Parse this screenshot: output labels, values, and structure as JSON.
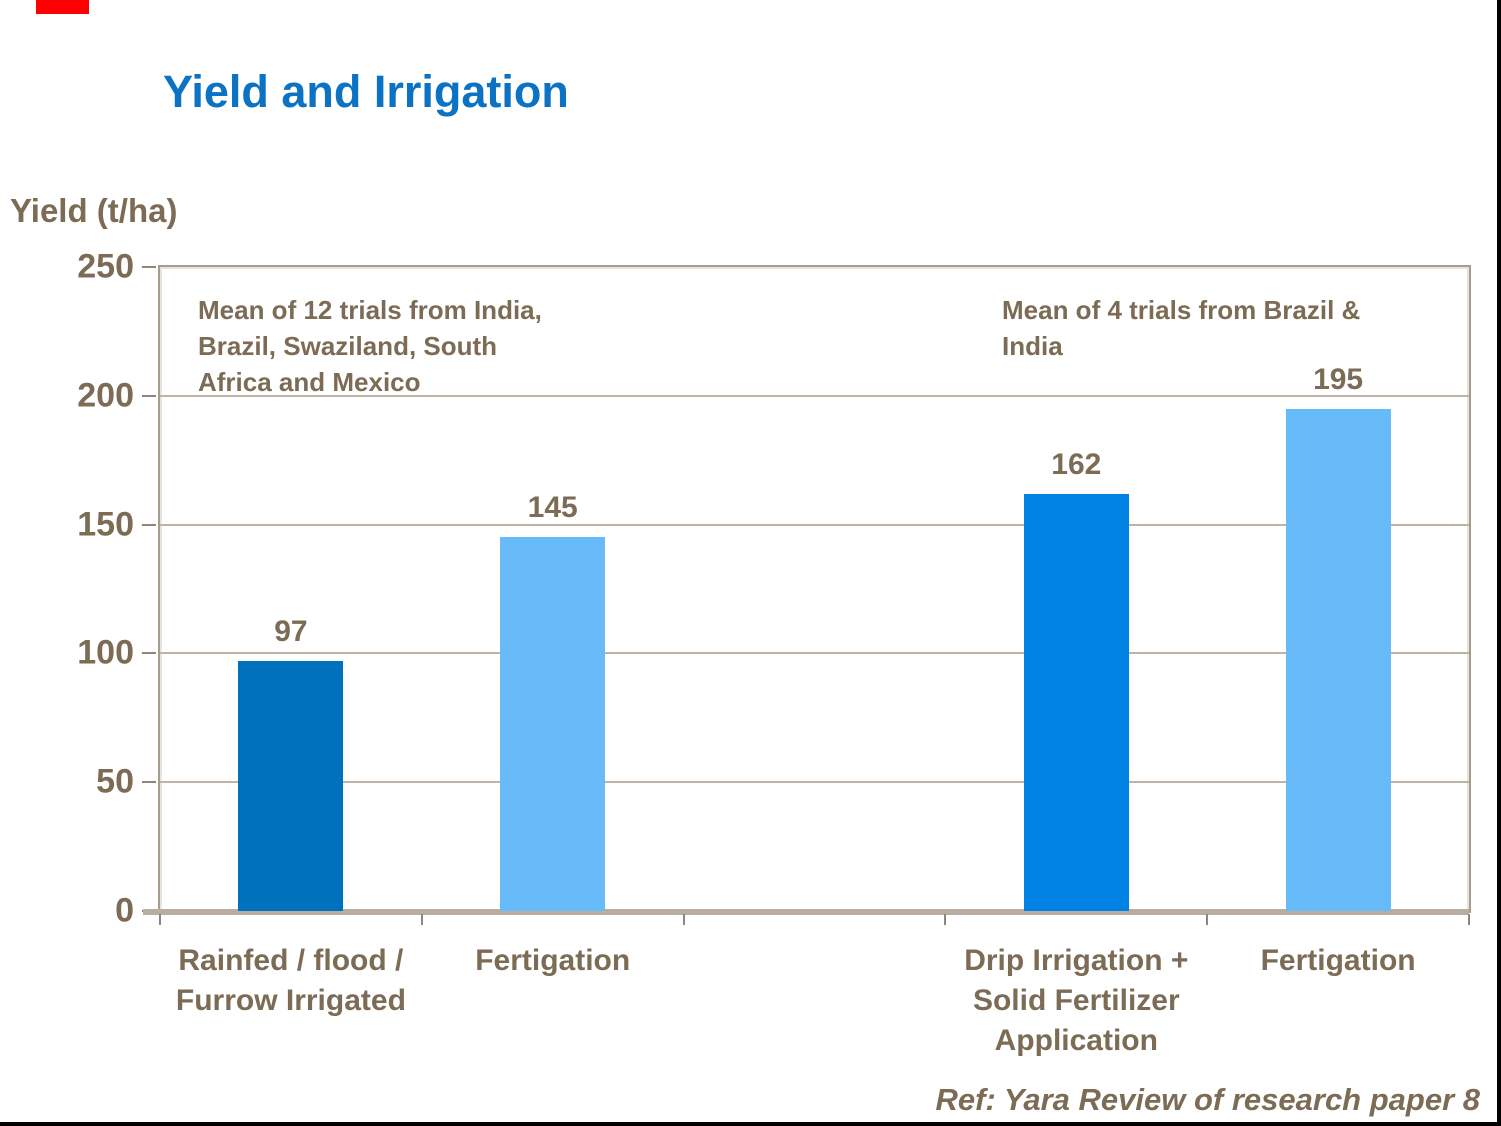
{
  "slide": {
    "title": "Yield and Irrigation",
    "title_color": "#0c73c4",
    "text_color": "#7c6b55",
    "footer": "Ref: Yara Review of research paper 8",
    "corner_mark_color": "#ff0000"
  },
  "chart_data": {
    "type": "bar",
    "title": "Yield and Irrigation",
    "xlabel": "",
    "ylabel": "Yield (t/ha)",
    "ylim": [
      0,
      250
    ],
    "yticks": [
      0,
      50,
      100,
      150,
      200,
      250
    ],
    "grid": true,
    "legend": false,
    "categories": [
      "Rainfed / flood /\nFurrow Irrigated",
      "Fertigation",
      "Drip Irrigation +\nSolid Fertilizer\nApplication",
      "Fertigation"
    ],
    "values": [
      97,
      145,
      162,
      195
    ],
    "bar_colors": [
      "#0071bd",
      "#67bbf9",
      "#0082e4",
      "#67bbf9"
    ],
    "grid_color": "#bdb3a6",
    "axis_color": "#b7ada1",
    "frame_color": "#a69c90",
    "tick_color": "#8f8579",
    "annotations": [
      {
        "text": "Mean of 12 trials from India,\nBrazil, Swaziland, South\nAfrica and Mexico"
      },
      {
        "text": "Mean of 4 trials from Brazil &\nIndia"
      }
    ]
  }
}
